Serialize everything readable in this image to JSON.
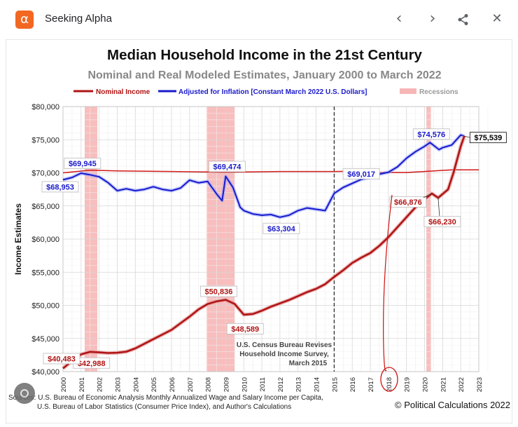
{
  "window": {
    "app_name": "Seeking Alpha",
    "logo_glyph": "α",
    "back_label": "‹",
    "forward_label": "›",
    "close_label": "✕"
  },
  "chart_data": {
    "type": "line",
    "title": "Median Household Income in the 21st Century",
    "subtitle": "Nominal and Real Modeled Estimates, January 2000 to March 2022",
    "ylabel": "Income Estimates",
    "xlabel": "",
    "xlim": [
      2000,
      2023
    ],
    "ylim": [
      40000,
      80000
    ],
    "y_ticks": [
      "$40,000",
      "$45,000",
      "$50,000",
      "$55,000",
      "$60,000",
      "$65,000",
      "$70,000",
      "$75,000",
      "$80,000"
    ],
    "x_ticks": [
      "2000",
      "2001",
      "2002",
      "2003",
      "2004",
      "2005",
      "2006",
      "2007",
      "2008",
      "2009",
      "2010",
      "2011",
      "2012",
      "2013",
      "2014",
      "2015",
      "2016",
      "2017",
      "2018",
      "2019",
      "2020",
      "2021",
      "2022",
      "2023"
    ],
    "legend": [
      "Nominal Income",
      "Adjusted for Inflation [Constant March 2022 U.S. Dollars]",
      "Recessions"
    ],
    "recessions": [
      [
        2001.2,
        2001.9
      ],
      [
        2007.95,
        2009.5
      ],
      [
        2020.1,
        2020.35
      ]
    ],
    "series": [
      {
        "name": "Nominal Income",
        "color": "#b01515",
        "points": [
          [
            2000.0,
            40483
          ],
          [
            2000.5,
            41600
          ],
          [
            2001.0,
            42600
          ],
          [
            2001.5,
            42988
          ],
          [
            2002.0,
            42900
          ],
          [
            2002.5,
            42800
          ],
          [
            2003.0,
            42850
          ],
          [
            2003.5,
            43000
          ],
          [
            2004.0,
            43500
          ],
          [
            2004.5,
            44200
          ],
          [
            2005.0,
            44900
          ],
          [
            2005.5,
            45600
          ],
          [
            2006.0,
            46300
          ],
          [
            2006.5,
            47300
          ],
          [
            2007.0,
            48300
          ],
          [
            2007.5,
            49400
          ],
          [
            2008.0,
            50200
          ],
          [
            2008.5,
            50600
          ],
          [
            2009.0,
            50836
          ],
          [
            2009.5,
            50200
          ],
          [
            2010.0,
            48589
          ],
          [
            2010.5,
            48700
          ],
          [
            2011.0,
            49200
          ],
          [
            2011.5,
            49800
          ],
          [
            2012.0,
            50300
          ],
          [
            2012.5,
            50800
          ],
          [
            2013.0,
            51400
          ],
          [
            2013.5,
            52000
          ],
          [
            2014.0,
            52500
          ],
          [
            2014.5,
            53200
          ],
          [
            2015.0,
            54300
          ],
          [
            2015.5,
            55300
          ],
          [
            2016.0,
            56400
          ],
          [
            2016.5,
            57200
          ],
          [
            2017.0,
            57900
          ],
          [
            2017.5,
            59000
          ],
          [
            2018.0,
            60300
          ],
          [
            2018.5,
            61800
          ],
          [
            2019.0,
            63300
          ],
          [
            2019.5,
            64800
          ],
          [
            2020.0,
            66000
          ],
          [
            2020.4,
            66876
          ],
          [
            2020.75,
            66230
          ],
          [
            2021.0,
            66800
          ],
          [
            2021.3,
            67500
          ],
          [
            2021.6,
            70000
          ],
          [
            2022.0,
            74000
          ],
          [
            2022.2,
            75539
          ]
        ]
      },
      {
        "name": "Adjusted for Inflation",
        "color": "#1a1acc",
        "points": [
          [
            2000.0,
            68953
          ],
          [
            2000.5,
            69300
          ],
          [
            2001.0,
            69945
          ],
          [
            2001.5,
            69700
          ],
          [
            2002.0,
            69400
          ],
          [
            2002.5,
            68500
          ],
          [
            2003.0,
            67300
          ],
          [
            2003.5,
            67600
          ],
          [
            2004.0,
            67300
          ],
          [
            2004.5,
            67500
          ],
          [
            2005.0,
            67900
          ],
          [
            2005.5,
            67500
          ],
          [
            2006.0,
            67300
          ],
          [
            2006.5,
            67700
          ],
          [
            2007.0,
            68900
          ],
          [
            2007.5,
            68500
          ],
          [
            2008.0,
            68700
          ],
          [
            2008.5,
            66800
          ],
          [
            2008.8,
            65800
          ],
          [
            2009.0,
            69474
          ],
          [
            2009.4,
            67800
          ],
          [
            2009.8,
            64800
          ],
          [
            2010.0,
            64300
          ],
          [
            2010.5,
            63800
          ],
          [
            2011.0,
            63600
          ],
          [
            2011.5,
            63700
          ],
          [
            2012.0,
            63304
          ],
          [
            2012.5,
            63600
          ],
          [
            2013.0,
            64300
          ],
          [
            2013.5,
            64700
          ],
          [
            2014.0,
            64500
          ],
          [
            2014.5,
            64300
          ],
          [
            2015.0,
            66900
          ],
          [
            2015.5,
            67800
          ],
          [
            2016.0,
            68400
          ],
          [
            2016.5,
            69017
          ],
          [
            2017.0,
            69300
          ],
          [
            2017.5,
            69800
          ],
          [
            2018.0,
            70100
          ],
          [
            2018.5,
            70900
          ],
          [
            2019.0,
            72200
          ],
          [
            2019.5,
            73200
          ],
          [
            2020.0,
            74000
          ],
          [
            2020.3,
            74576
          ],
          [
            2020.8,
            73500
          ],
          [
            2021.0,
            73800
          ],
          [
            2021.5,
            74200
          ],
          [
            2022.0,
            75700
          ],
          [
            2022.2,
            75539
          ]
        ]
      },
      {
        "name": "Recession reference",
        "color": "#d01818",
        "points": [
          [
            2000.0,
            70000
          ],
          [
            2001.5,
            70400
          ],
          [
            2003.0,
            70300
          ],
          [
            2006.0,
            70200
          ],
          [
            2009.0,
            70100
          ],
          [
            2012.0,
            70200
          ],
          [
            2015.0,
            70200
          ],
          [
            2017.2,
            70300
          ],
          [
            2017.5,
            70050
          ],
          [
            2019.0,
            70050
          ],
          [
            2020.3,
            70250
          ],
          [
            2021.5,
            70450
          ],
          [
            2023.0,
            70450
          ]
        ]
      }
    ],
    "value_labels": [
      {
        "text": "$69,945",
        "x": 2001.0,
        "y": 69945,
        "color": "#1a1acc"
      },
      {
        "text": "$68,953",
        "x": 2000.0,
        "y": 68953,
        "color": "#1a1acc"
      },
      {
        "text": "$69,474",
        "x": 2009.0,
        "y": 69474,
        "color": "#1a1acc"
      },
      {
        "text": "$63,304",
        "x": 2012.0,
        "y": 63304,
        "color": "#1a1acc"
      },
      {
        "text": "$69,017",
        "x": 2016.5,
        "y": 69017,
        "color": "#1a1acc"
      },
      {
        "text": "$74,576",
        "x": 2020.3,
        "y": 74576,
        "color": "#1a1acc"
      },
      {
        "text": "$75,539",
        "x": 2022.2,
        "y": 75539,
        "color": "#000000"
      },
      {
        "text": "$66,876",
        "x": 2020.4,
        "y": 66876,
        "color": "#b01515"
      },
      {
        "text": "$66,230",
        "x": 2020.75,
        "y": 66230,
        "color": "#b01515"
      },
      {
        "text": "$50,836",
        "x": 2009.0,
        "y": 50836,
        "color": "#b01515"
      },
      {
        "text": "$48,589",
        "x": 2010.0,
        "y": 48589,
        "color": "#b01515"
      },
      {
        "text": "$42,988",
        "x": 2001.5,
        "y": 42988,
        "color": "#b01515"
      },
      {
        "text": "$40,483",
        "x": 2000.0,
        "y": 40483,
        "color": "#b01515"
      }
    ],
    "annotation": {
      "lines": [
        "U.S. Census Bureau Revises",
        "Household Income Survey,",
        "March 2015"
      ],
      "x": 2015.0
    },
    "sources": [
      "Sources: U.S. Bureau of Economic Analysis Monthly Annualized Wage and Salary Income per Capita,",
      "U.S. Bureau of Labor Statistics (Consumer Price Index), and Author's Calculations"
    ],
    "credit": "© Political Calculations 2022"
  }
}
